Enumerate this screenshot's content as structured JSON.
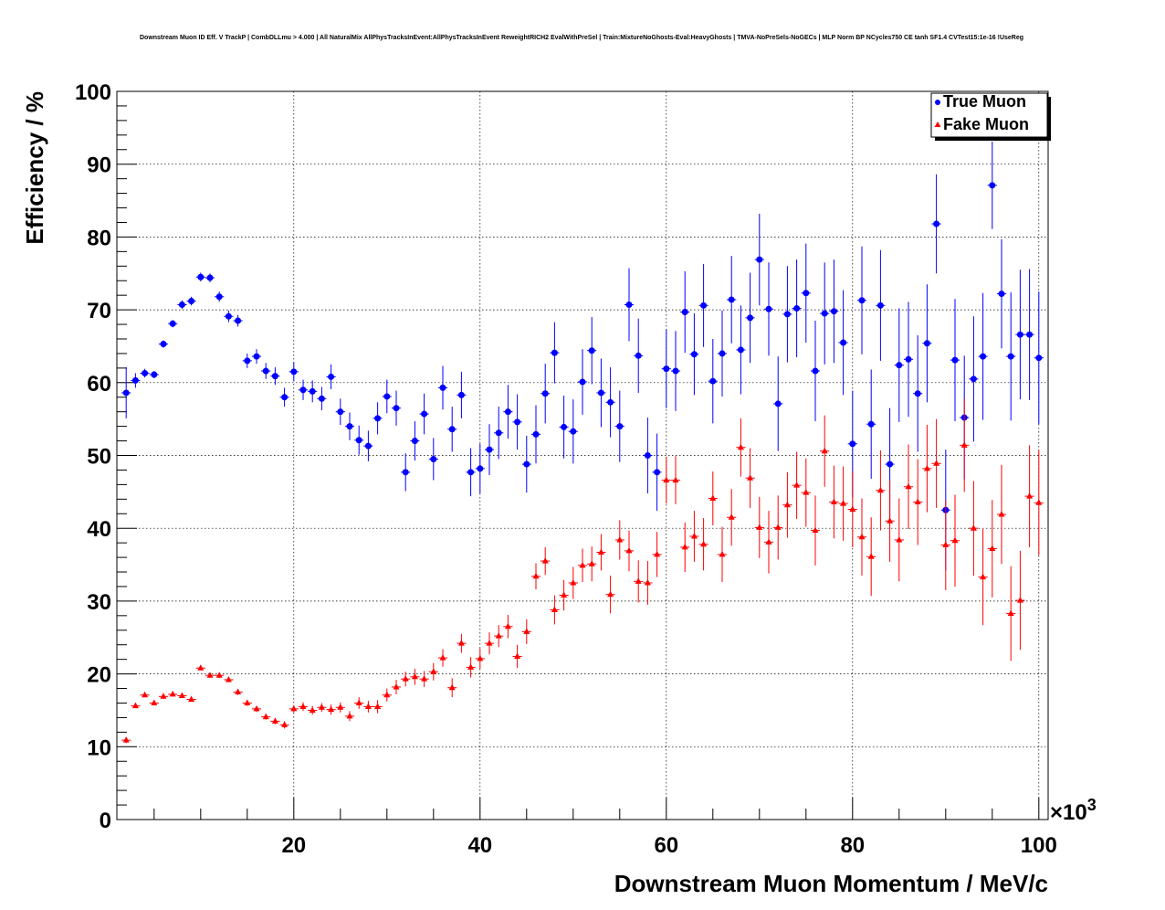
{
  "chart_data": {
    "type": "scatter",
    "title": "Downstream Muon ID Eff. V TrackP | CombDLLmu > 4.000 | All NaturalMix AllPhysTracksInEvent:AllPhysTracksInEvent ReweightRICH2 EvalWithPreSel | Train:MixtureNoGhosts-Eval:HeavyGhosts | TMVA-NoPreSels-NoGECs | MLP Norm BP NCycles750 CE tanh SF1.4 CVTest15:1e-16 !UseReg",
    "xlabel": "Downstream Muon Momentum / MeV/c",
    "ylabel": "Efficiency / %",
    "x_exponent_label": "×10",
    "x_exponent_power": "3",
    "xlim": [
      1000,
      101000
    ],
    "ylim": [
      0,
      100
    ],
    "x_ticks": [
      20000,
      40000,
      60000,
      80000,
      100000
    ],
    "x_tick_labels": [
      "20",
      "40",
      "60",
      "80",
      "100"
    ],
    "y_ticks": [
      0,
      10,
      20,
      30,
      40,
      50,
      60,
      70,
      80,
      90,
      100
    ],
    "y_tick_labels": [
      "0",
      "10",
      "20",
      "30",
      "40",
      "50",
      "60",
      "70",
      "80",
      "90",
      "100"
    ],
    "grid": true,
    "legend_position": "top-right",
    "colors": {
      "true_muon": "#0000ff",
      "fake_muon": "#ff0000"
    },
    "series": [
      {
        "name": "True Muon",
        "marker": "circle",
        "points": [
          [
            2000,
            58.6,
            3.5
          ],
          [
            3000,
            60.3,
            1.0
          ],
          [
            4000,
            61.3,
            0.6
          ],
          [
            5000,
            61.1,
            0.5
          ],
          [
            6000,
            65.3,
            0.5
          ],
          [
            7000,
            68.1,
            0.5
          ],
          [
            8000,
            70.7,
            0.6
          ],
          [
            9000,
            71.2,
            0.6
          ],
          [
            10000,
            74.5,
            0.6
          ],
          [
            11000,
            74.4,
            0.6
          ],
          [
            12000,
            71.8,
            0.7
          ],
          [
            13000,
            69.1,
            0.8
          ],
          [
            14000,
            68.5,
            0.8
          ],
          [
            15000,
            63.0,
            1.0
          ],
          [
            16000,
            63.6,
            1.0
          ],
          [
            17000,
            61.6,
            1.1
          ],
          [
            18000,
            60.9,
            1.2
          ],
          [
            19000,
            58.0,
            1.3
          ],
          [
            20000,
            61.5,
            1.3
          ],
          [
            21000,
            59.0,
            1.4
          ],
          [
            22000,
            58.8,
            1.5
          ],
          [
            23000,
            57.8,
            1.6
          ],
          [
            24000,
            60.8,
            1.7
          ],
          [
            25000,
            56.0,
            1.8
          ],
          [
            26000,
            54.0,
            1.9
          ],
          [
            27000,
            52.1,
            2.0
          ],
          [
            28000,
            51.3,
            2.1
          ],
          [
            29000,
            55.1,
            2.2
          ],
          [
            30000,
            58.1,
            2.3
          ],
          [
            31000,
            56.5,
            2.4
          ],
          [
            32000,
            47.7,
            2.6
          ],
          [
            33000,
            52.0,
            2.7
          ],
          [
            34000,
            55.7,
            2.8
          ],
          [
            35000,
            49.5,
            2.9
          ],
          [
            36000,
            59.3,
            3.0
          ],
          [
            37000,
            53.6,
            3.1
          ],
          [
            38000,
            58.3,
            3.2
          ],
          [
            39000,
            47.7,
            3.3
          ],
          [
            40000,
            48.2,
            3.4
          ],
          [
            41000,
            50.8,
            3.5
          ],
          [
            42000,
            53.1,
            3.6
          ],
          [
            43000,
            56.0,
            3.7
          ],
          [
            44000,
            54.6,
            3.8
          ],
          [
            45000,
            48.8,
            3.9
          ],
          [
            46000,
            52.9,
            4.0
          ],
          [
            47000,
            58.5,
            4.1
          ],
          [
            48000,
            64.1,
            4.2
          ],
          [
            49000,
            53.9,
            4.3
          ],
          [
            50000,
            53.3,
            4.4
          ],
          [
            51000,
            60.1,
            4.5
          ],
          [
            52000,
            64.4,
            4.6
          ],
          [
            53000,
            58.6,
            4.7
          ],
          [
            54000,
            57.3,
            4.8
          ],
          [
            55000,
            54.0,
            4.9
          ],
          [
            56000,
            70.7,
            5.0
          ],
          [
            57000,
            63.7,
            5.1
          ],
          [
            58000,
            50.0,
            5.2
          ],
          [
            59000,
            47.7,
            5.3
          ],
          [
            60000,
            61.9,
            5.4
          ],
          [
            61000,
            61.6,
            5.5
          ],
          [
            62000,
            69.7,
            5.6
          ],
          [
            63000,
            63.9,
            5.6
          ],
          [
            64000,
            70.6,
            5.7
          ],
          [
            65000,
            60.2,
            5.8
          ],
          [
            66000,
            64.0,
            5.9
          ],
          [
            67000,
            71.4,
            6.0
          ],
          [
            68000,
            64.5,
            6.1
          ],
          [
            69000,
            68.9,
            6.2
          ],
          [
            70000,
            76.9,
            6.3
          ],
          [
            71000,
            70.1,
            6.4
          ],
          [
            72000,
            57.1,
            6.5
          ],
          [
            73000,
            69.4,
            6.6
          ],
          [
            74000,
            70.2,
            6.7
          ],
          [
            75000,
            72.3,
            6.8
          ],
          [
            76000,
            61.6,
            6.9
          ],
          [
            77000,
            69.5,
            7.0
          ],
          [
            78000,
            69.8,
            7.1
          ],
          [
            79000,
            65.5,
            7.2
          ],
          [
            80000,
            51.6,
            7.3
          ],
          [
            81000,
            71.3,
            7.4
          ],
          [
            82000,
            54.3,
            7.5
          ],
          [
            83000,
            70.6,
            7.6
          ],
          [
            84000,
            48.8,
            7.7
          ],
          [
            85000,
            62.4,
            7.8
          ],
          [
            86000,
            63.2,
            7.9
          ],
          [
            87000,
            58.5,
            8.0
          ],
          [
            88000,
            65.4,
            8.1
          ],
          [
            89000,
            81.8,
            6.8
          ],
          [
            90000,
            42.5,
            8.3
          ],
          [
            91000,
            63.1,
            8.4
          ],
          [
            92000,
            55.2,
            8.5
          ],
          [
            93000,
            60.5,
            8.6
          ],
          [
            94000,
            63.6,
            8.7
          ],
          [
            95000,
            87.1,
            6.0
          ],
          [
            96000,
            72.2,
            7.5
          ],
          [
            97000,
            63.6,
            8.8
          ],
          [
            98000,
            66.6,
            8.9
          ],
          [
            99000,
            66.6,
            9.0
          ],
          [
            100000,
            63.4,
            9.1
          ]
        ]
      },
      {
        "name": "Fake Muon",
        "marker": "triangle",
        "points": [
          [
            2000,
            10.9,
            0.4
          ],
          [
            3000,
            15.6,
            0.3
          ],
          [
            4000,
            17.1,
            0.3
          ],
          [
            5000,
            16.0,
            0.3
          ],
          [
            6000,
            16.9,
            0.3
          ],
          [
            7000,
            17.2,
            0.3
          ],
          [
            8000,
            17.0,
            0.3
          ],
          [
            9000,
            16.5,
            0.3
          ],
          [
            10000,
            20.8,
            0.3
          ],
          [
            11000,
            19.8,
            0.3
          ],
          [
            12000,
            19.8,
            0.3
          ],
          [
            13000,
            19.2,
            0.3
          ],
          [
            14000,
            17.5,
            0.4
          ],
          [
            15000,
            16.0,
            0.4
          ],
          [
            16000,
            15.2,
            0.4
          ],
          [
            17000,
            14.1,
            0.4
          ],
          [
            18000,
            13.5,
            0.4
          ],
          [
            19000,
            13.0,
            0.5
          ],
          [
            20000,
            15.2,
            0.5
          ],
          [
            21000,
            15.5,
            0.6
          ],
          [
            22000,
            15.0,
            0.6
          ],
          [
            23000,
            15.4,
            0.6
          ],
          [
            24000,
            15.1,
            0.7
          ],
          [
            25000,
            15.4,
            0.7
          ],
          [
            26000,
            14.2,
            0.7
          ],
          [
            27000,
            16.0,
            0.8
          ],
          [
            28000,
            15.5,
            0.8
          ],
          [
            29000,
            15.5,
            0.9
          ],
          [
            30000,
            17.1,
            0.9
          ],
          [
            31000,
            18.2,
            1.0
          ],
          [
            32000,
            19.3,
            1.0
          ],
          [
            33000,
            19.6,
            1.1
          ],
          [
            34000,
            19.3,
            1.1
          ],
          [
            35000,
            20.3,
            1.2
          ],
          [
            36000,
            22.2,
            1.2
          ],
          [
            37000,
            18.1,
            1.3
          ],
          [
            38000,
            24.2,
            1.3
          ],
          [
            39000,
            20.9,
            1.4
          ],
          [
            40000,
            22.1,
            1.4
          ],
          [
            41000,
            24.2,
            1.5
          ],
          [
            42000,
            25.2,
            1.5
          ],
          [
            43000,
            26.5,
            1.6
          ],
          [
            44000,
            22.4,
            1.6
          ],
          [
            45000,
            25.8,
            1.7
          ],
          [
            46000,
            33.4,
            1.8
          ],
          [
            47000,
            35.5,
            1.9
          ],
          [
            48000,
            28.8,
            2.0
          ],
          [
            49000,
            30.8,
            2.1
          ],
          [
            50000,
            32.5,
            2.2
          ],
          [
            51000,
            34.9,
            2.3
          ],
          [
            52000,
            35.1,
            2.4
          ],
          [
            53000,
            36.7,
            2.5
          ],
          [
            54000,
            30.9,
            2.6
          ],
          [
            55000,
            38.4,
            2.7
          ],
          [
            56000,
            36.9,
            2.8
          ],
          [
            57000,
            32.7,
            2.9
          ],
          [
            58000,
            32.5,
            3.0
          ],
          [
            59000,
            36.4,
            3.1
          ],
          [
            60000,
            46.6,
            3.2
          ],
          [
            61000,
            46.6,
            3.3
          ],
          [
            62000,
            37.4,
            3.4
          ],
          [
            63000,
            38.9,
            3.5
          ],
          [
            64000,
            37.8,
            3.6
          ],
          [
            65000,
            44.1,
            3.7
          ],
          [
            66000,
            36.4,
            3.8
          ],
          [
            67000,
            41.5,
            3.9
          ],
          [
            68000,
            51.1,
            4.0
          ],
          [
            69000,
            46.9,
            4.1
          ],
          [
            70000,
            40.1,
            4.2
          ],
          [
            71000,
            38.1,
            4.3
          ],
          [
            72000,
            40.1,
            4.4
          ],
          [
            73000,
            43.2,
            4.5
          ],
          [
            74000,
            45.9,
            4.6
          ],
          [
            75000,
            44.9,
            4.7
          ],
          [
            76000,
            39.7,
            4.8
          ],
          [
            77000,
            50.6,
            4.9
          ],
          [
            78000,
            43.6,
            5.0
          ],
          [
            79000,
            43.4,
            5.1
          ],
          [
            80000,
            42.6,
            5.2
          ],
          [
            81000,
            38.8,
            5.3
          ],
          [
            82000,
            36.1,
            5.4
          ],
          [
            83000,
            45.2,
            5.5
          ],
          [
            84000,
            41.0,
            5.6
          ],
          [
            85000,
            38.4,
            5.7
          ],
          [
            86000,
            45.7,
            5.8
          ],
          [
            87000,
            43.6,
            5.9
          ],
          [
            88000,
            48.2,
            6.0
          ],
          [
            89000,
            48.9,
            6.1
          ],
          [
            90000,
            37.7,
            6.2
          ],
          [
            91000,
            38.3,
            6.3
          ],
          [
            92000,
            51.4,
            6.4
          ],
          [
            93000,
            40.0,
            6.5
          ],
          [
            94000,
            33.3,
            6.6
          ],
          [
            95000,
            37.2,
            6.7
          ],
          [
            96000,
            41.9,
            6.8
          ],
          [
            97000,
            28.3,
            6.5
          ],
          [
            98000,
            30.1,
            6.8
          ],
          [
            99000,
            44.4,
            7.0
          ],
          [
            100000,
            43.5,
            7.2
          ]
        ]
      }
    ]
  }
}
